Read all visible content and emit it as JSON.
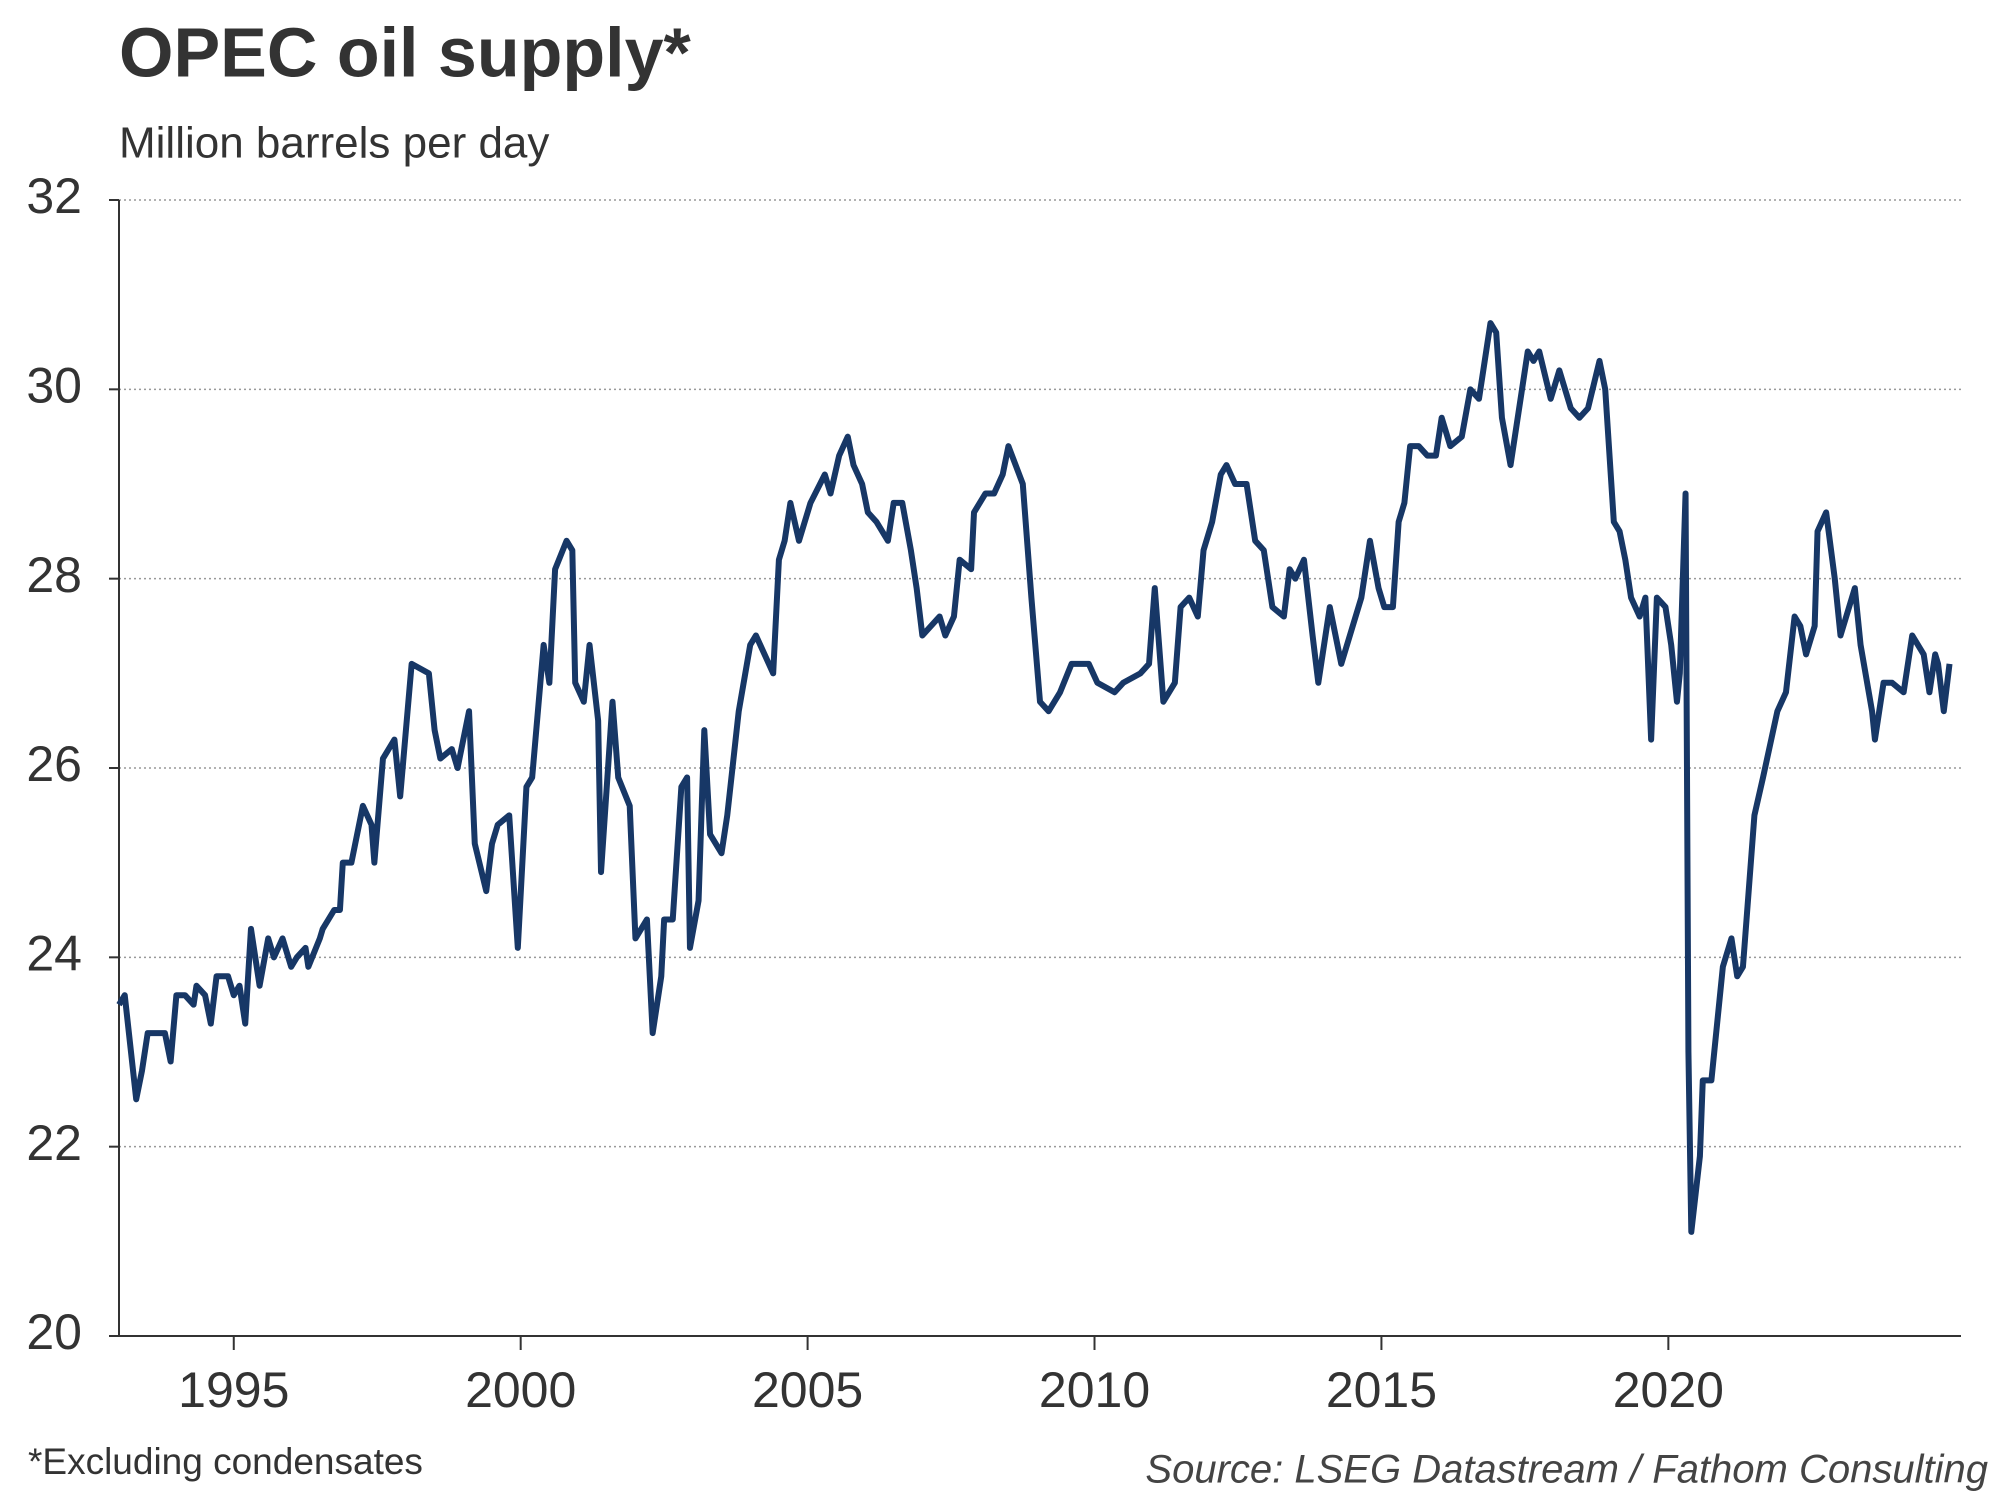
{
  "chart_data": {
    "type": "line",
    "title": "OPEC oil supply*",
    "subtitle": "Million barrels per day",
    "note": "*Excluding condensates",
    "source": "Source: LSEG Datastream / Fathom Consulting",
    "xlim": [
      1993,
      2025.1
    ],
    "xticks": [
      1995,
      2000,
      2005,
      2010,
      2015,
      2020
    ],
    "ylim": [
      20,
      32
    ],
    "yticks": [
      20,
      22,
      24,
      26,
      28,
      30,
      32
    ],
    "grid": true,
    "series": [
      {
        "color": "#173766",
        "x": [
          1993.0,
          1993.1,
          1993.3,
          1993.4,
          1993.5,
          1993.7,
          1993.8,
          1993.9,
          1994.0,
          1994.15,
          1994.3,
          1994.35,
          1994.5,
          1994.6,
          1994.7,
          1994.9,
          1995.0,
          1995.1,
          1995.2,
          1995.3,
          1995.45,
          1995.6,
          1995.7,
          1995.85,
          1996.0,
          1996.1,
          1996.25,
          1996.3,
          1996.5,
          1996.55,
          1996.75,
          1996.85,
          1996.9,
          1997.05,
          1997.25,
          1997.4,
          1997.45,
          1997.6,
          1997.8,
          1997.9,
          1998.1,
          1998.4,
          1998.5,
          1998.6,
          1998.8,
          1998.9,
          1999.1,
          1999.2,
          1999.4,
          1999.5,
          1999.6,
          1999.8,
          1999.95,
          2000.1,
          2000.2,
          2000.4,
          2000.5,
          2000.6,
          2000.8,
          2000.9,
          2000.95,
          2001.1,
          2001.2,
          2001.35,
          2001.4,
          2001.6,
          2001.7,
          2001.9,
          2002.0,
          2002.2,
          2002.3,
          2002.45,
          2002.5,
          2002.65,
          2002.8,
          2002.9,
          2002.95,
          2003.1,
          2003.2,
          2003.3,
          2003.5,
          2003.6,
          2003.8,
          2004.0,
          2004.1,
          2004.4,
          2004.5,
          2004.6,
          2004.7,
          2004.85,
          2005.05,
          2005.3,
          2005.4,
          2005.55,
          2005.7,
          2005.8,
          2005.95,
          2006.05,
          2006.2,
          2006.4,
          2006.5,
          2006.65,
          2006.8,
          2006.9,
          2007.0,
          2007.3,
          2007.4,
          2007.55,
          2007.65,
          2007.85,
          2007.9,
          2008.1,
          2008.25,
          2008.4,
          2008.5,
          2008.75,
          2008.9,
          2009.05,
          2009.2,
          2009.4,
          2009.6,
          2009.9,
          2010.05,
          2010.35,
          2010.5,
          2010.8,
          2010.95,
          2011.05,
          2011.2,
          2011.4,
          2011.5,
          2011.65,
          2011.8,
          2011.9,
          2012.05,
          2012.2,
          2012.3,
          2012.45,
          2012.65,
          2012.8,
          2012.95,
          2013.1,
          2013.3,
          2013.4,
          2013.5,
          2013.65,
          2013.8,
          2013.9,
          2014.1,
          2014.3,
          2014.5,
          2014.65,
          2014.8,
          2014.95,
          2015.05,
          2015.2,
          2015.3,
          2015.4,
          2015.5,
          2015.65,
          2015.8,
          2015.95,
          2016.05,
          2016.2,
          2016.4,
          2016.55,
          2016.7,
          2016.9,
          2017.0,
          2017.1,
          2017.25,
          2017.35,
          2017.55,
          2017.65,
          2017.75,
          2017.95,
          2018.1,
          2018.3,
          2018.45,
          2018.6,
          2018.8,
          2018.9,
          2019.05,
          2019.15,
          2019.25,
          2019.35,
          2019.5,
          2019.6,
          2019.7,
          2019.8,
          2019.95,
          2020.05,
          2020.15,
          2020.2,
          2020.3,
          2020.35,
          2020.4,
          2020.55,
          2020.6,
          2020.75,
          2020.95,
          2021.1,
          2021.2,
          2021.3,
          2021.5,
          2021.65,
          2021.9,
          2022.05,
          2022.2,
          2022.3,
          2022.4,
          2022.55,
          2022.6,
          2022.75,
          2022.9,
          2023.0,
          2023.25,
          2023.35,
          2023.55,
          2023.6,
          2023.75,
          2023.9,
          2024.1,
          2024.25,
          2024.45,
          2024.55,
          2024.65,
          2024.7,
          2024.8,
          2024.9
        ],
        "values": [
          23.5,
          23.6,
          22.5,
          22.8,
          23.2,
          23.2,
          23.2,
          22.9,
          23.6,
          23.6,
          23.5,
          23.7,
          23.6,
          23.3,
          23.8,
          23.8,
          23.6,
          23.7,
          23.3,
          24.3,
          23.7,
          24.2,
          24.0,
          24.2,
          23.9,
          24.0,
          24.1,
          23.9,
          24.2,
          24.3,
          24.5,
          24.5,
          25.0,
          25.0,
          25.6,
          25.4,
          25.0,
          26.1,
          26.3,
          25.7,
          27.1,
          27.0,
          26.4,
          26.1,
          26.2,
          26.0,
          26.6,
          25.2,
          24.7,
          25.2,
          25.4,
          25.5,
          24.1,
          25.8,
          25.9,
          27.3,
          26.9,
          28.1,
          28.4,
          28.3,
          26.9,
          26.7,
          27.3,
          26.5,
          24.9,
          26.7,
          25.9,
          25.6,
          24.2,
          24.4,
          23.2,
          23.8,
          24.4,
          24.4,
          25.8,
          25.9,
          24.1,
          24.6,
          26.4,
          25.3,
          25.1,
          25.5,
          26.6,
          27.3,
          27.4,
          27.0,
          28.2,
          28.4,
          28.8,
          28.4,
          28.8,
          29.1,
          28.9,
          29.3,
          29.5,
          29.2,
          29.0,
          28.7,
          28.6,
          28.4,
          28.8,
          28.8,
          28.3,
          27.9,
          27.4,
          27.6,
          27.4,
          27.6,
          28.2,
          28.1,
          28.7,
          28.9,
          28.9,
          29.1,
          29.4,
          29.0,
          27.8,
          26.7,
          26.6,
          26.8,
          27.1,
          27.1,
          26.9,
          26.8,
          26.9,
          27.0,
          27.1,
          27.9,
          26.7,
          26.9,
          27.7,
          27.8,
          27.6,
          28.3,
          28.6,
          29.1,
          29.2,
          29.0,
          29.0,
          28.4,
          28.3,
          27.7,
          27.6,
          28.1,
          28.0,
          28.2,
          27.4,
          26.9,
          27.7,
          27.1,
          27.5,
          27.8,
          28.4,
          27.9,
          27.7,
          27.7,
          28.6,
          28.8,
          29.4,
          29.4,
          29.3,
          29.3,
          29.7,
          29.4,
          29.5,
          30.0,
          29.9,
          30.7,
          30.6,
          29.7,
          29.2,
          29.6,
          30.4,
          30.3,
          30.4,
          29.9,
          30.2,
          29.8,
          29.7,
          29.8,
          30.3,
          30.0,
          28.6,
          28.5,
          28.2,
          27.8,
          27.6,
          27.8,
          26.3,
          27.8,
          27.7,
          27.3,
          26.7,
          27.0,
          28.9,
          23.0,
          21.1,
          21.9,
          22.7,
          22.7,
          23.9,
          24.2,
          23.8,
          23.9,
          25.5,
          25.9,
          26.6,
          26.8,
          27.6,
          27.5,
          27.2,
          27.5,
          28.5,
          28.7,
          28.0,
          27.4,
          27.9,
          27.3,
          26.6,
          26.3,
          26.9,
          26.9,
          26.8,
          27.4,
          27.2,
          26.8,
          27.2,
          27.1,
          26.6,
          27.1
        ]
      }
    ]
  }
}
